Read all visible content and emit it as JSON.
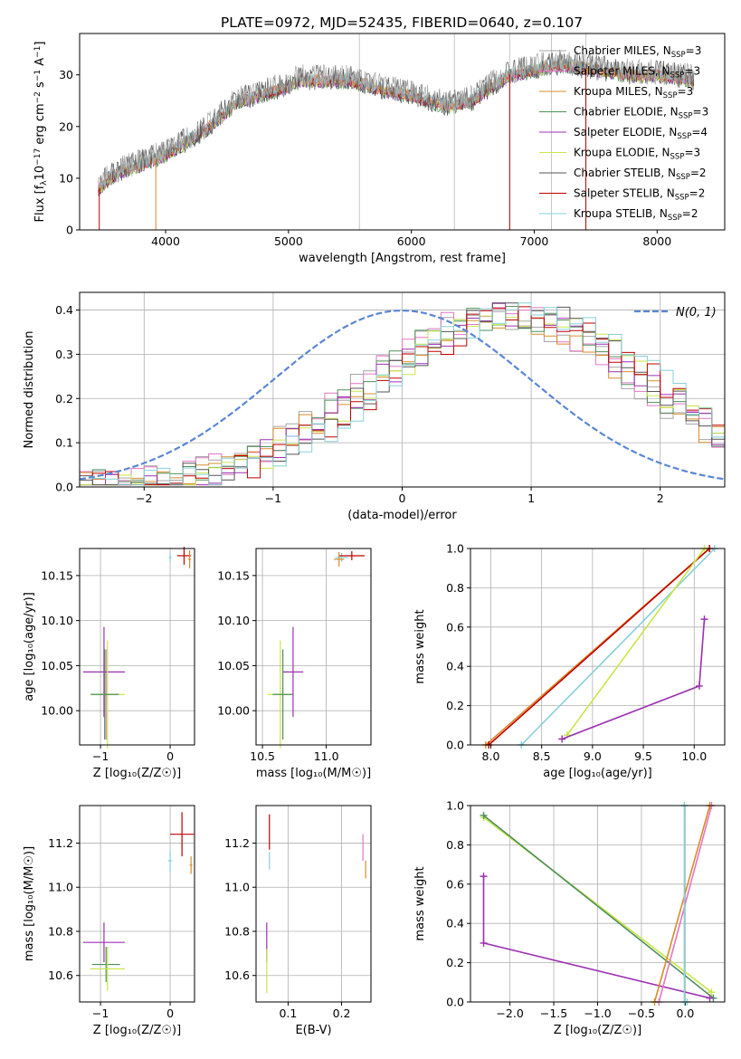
{
  "figure": {
    "title": "PLATE=0972, MJD=52435, FIBERID=0640, z=0.107",
    "models": [
      {
        "name": "Chabrier MILES",
        "nssp": "3",
        "color": "#a6a6a6"
      },
      {
        "name": "Salpeter MILES",
        "nssp": "3",
        "color": "#e377c2"
      },
      {
        "name": "Kroupa MILES",
        "nssp": "3",
        "color": "#d98c2b"
      },
      {
        "name": "Chabrier ELODIE",
        "nssp": "3",
        "color": "#4f8f5a"
      },
      {
        "name": "Salpeter ELODIE",
        "nssp": "4",
        "color": "#9b30b0"
      },
      {
        "name": "Kroupa ELODIE",
        "nssp": "3",
        "color": "#c8e64a"
      },
      {
        "name": "Chabrier STELIB",
        "nssp": "2",
        "color": "#555555"
      },
      {
        "name": "Salpeter STELIB",
        "nssp": "2",
        "color": "#c00000"
      },
      {
        "name": "Kroupa STELIB",
        "nssp": "2",
        "color": "#86d0d8"
      }
    ]
  },
  "chart_data": [
    {
      "id": "spectrum",
      "type": "line",
      "xlabel": "wavelength [Angstrom, rest frame]",
      "ylabel": "Flux [f",
      "xlim": [
        3300,
        8550
      ],
      "ylim": [
        0,
        38
      ],
      "xticks": [
        "4000",
        "5000",
        "6000",
        "7000",
        "8000"
      ],
      "xtick_values": [
        4000,
        5000,
        6000,
        7000,
        8000
      ],
      "yticks": [
        "0",
        "10",
        "20",
        "30"
      ],
      "ytick_values": [
        0,
        10,
        20,
        30
      ],
      "masked_lines": [
        5577,
        6350,
        6800,
        7140,
        7420
      ],
      "legend_position": "top-right",
      "series_anchor": {
        "x": [
          3450,
          3600,
          3950,
          4300,
          4600,
          4900,
          5100,
          5500,
          5800,
          6000,
          6300,
          6500,
          6600,
          6800,
          7000,
          7200,
          7500,
          7800,
          8000,
          8300
        ],
        "y": [
          8,
          11,
          14,
          19,
          25,
          27,
          29,
          29,
          27,
          26,
          24,
          25,
          27,
          30,
          31,
          32,
          31,
          30,
          30,
          29
        ]
      }
    },
    {
      "id": "residuals",
      "type": "line",
      "xlabel": "(data-model)/error",
      "ylabel": "Normed distribution",
      "xlim": [
        -2.5,
        2.5
      ],
      "ylim": [
        0,
        0.44
      ],
      "xticks": [
        "−2",
        "−1",
        "0",
        "1",
        "2"
      ],
      "xtick_values": [
        -2,
        -1,
        0,
        1,
        2
      ],
      "yticks": [
        "0.0",
        "0.1",
        "0.2",
        "0.3",
        "0.4"
      ],
      "ytick_values": [
        0,
        0.1,
        0.2,
        0.3,
        0.4
      ],
      "reference_curve": "N(0, 1)",
      "histogram_centers": [
        -2.4,
        -2.2,
        -2.0,
        -1.8,
        -1.6,
        -1.4,
        -1.2,
        -1.0,
        -0.8,
        -0.6,
        -0.4,
        -0.2,
        0.0,
        0.2,
        0.4,
        0.6,
        0.8,
        1.0,
        1.2,
        1.4,
        1.6,
        1.8,
        2.0,
        2.2,
        2.4
      ],
      "histogram_values": [
        0.03,
        0.04,
        0.05,
        0.06,
        0.08,
        0.1,
        0.12,
        0.13,
        0.15,
        0.17,
        0.2,
        0.24,
        0.28,
        0.32,
        0.34,
        0.36,
        0.37,
        0.38,
        0.35,
        0.31,
        0.26,
        0.22,
        0.17,
        0.14,
        0.12
      ]
    },
    {
      "id": "age-Z",
      "type": "scatter",
      "xlabel": "Z [log₁₀(Z/Z☉)]",
      "ylabel": "age  [log₁₀(age/yr)]",
      "xlim": [
        -1.3,
        0.35
      ],
      "ylim": [
        9.962,
        10.18
      ],
      "xticks": [
        "−1",
        "0"
      ],
      "xtick_values": [
        -1,
        0
      ],
      "yticks": [
        "10.00",
        "10.05",
        "10.10",
        "10.15"
      ],
      "ytick_values": [
        10.0,
        10.05,
        10.1,
        10.15
      ],
      "points": [
        {
          "x": -0.92,
          "y": 10.018,
          "xerr": 0.2,
          "yerr": 0.05,
          "model": 1
        },
        {
          "x": -0.95,
          "y": 10.043,
          "xerr": 0.3,
          "yerr": 0.05,
          "model": 4
        },
        {
          "x": -0.9,
          "y": 10.018,
          "xerr": 0.25,
          "yerr": 0.06,
          "model": 5
        },
        {
          "x": -0.94,
          "y": 10.018,
          "xerr": 0.2,
          "yerr": 0.05,
          "model": 3
        },
        {
          "x": 0.0,
          "y": 10.17,
          "xerr": 0.02,
          "yerr": 0.005,
          "model": 8
        },
        {
          "x": 0.2,
          "y": 10.172,
          "xerr": 0.1,
          "yerr": 0.01,
          "model": 7
        },
        {
          "x": 0.28,
          "y": 10.168,
          "xerr": 0.02,
          "yerr": 0.01,
          "model": 2
        }
      ]
    },
    {
      "id": "age-mass",
      "type": "scatter",
      "xlabel": "mass [log₁₀(M/M☉)]",
      "ylabel": "",
      "xlim": [
        10.45,
        11.35
      ],
      "ylim": [
        9.962,
        10.18
      ],
      "xticks": [
        "10.5",
        "11.0"
      ],
      "xtick_values": [
        10.5,
        11.0
      ],
      "yticks": [
        "10.00",
        "10.05",
        "10.10",
        "10.15"
      ],
      "ytick_values": [
        10.0,
        10.05,
        10.1,
        10.15
      ],
      "points": [
        {
          "x": 10.64,
          "y": 10.018,
          "xerr": 0.1,
          "yerr": 0.06,
          "model": 5
        },
        {
          "x": 10.74,
          "y": 10.043,
          "xerr": 0.08,
          "yerr": 0.05,
          "model": 4
        },
        {
          "x": 10.66,
          "y": 10.018,
          "xerr": 0.08,
          "yerr": 0.05,
          "model": 3
        },
        {
          "x": 11.12,
          "y": 10.17,
          "xerr": 0.05,
          "yerr": 0.005,
          "model": 8
        },
        {
          "x": 11.2,
          "y": 10.172,
          "xerr": 0.1,
          "yerr": 0.005,
          "model": 7
        },
        {
          "x": 11.1,
          "y": 10.168,
          "xerr": 0.04,
          "yerr": 0.008,
          "model": 2
        }
      ]
    },
    {
      "id": "weight-age",
      "type": "line",
      "xlabel": "age  [log₁₀(age/yr)]",
      "ylabel": "mass weight",
      "xlim": [
        7.8,
        10.3
      ],
      "ylim": [
        0,
        1.0
      ],
      "xticks": [
        "8.0",
        "8.5",
        "9.0",
        "9.5",
        "10.0"
      ],
      "xtick_values": [
        8.0,
        8.5,
        9.0,
        9.5,
        10.0
      ],
      "yticks": [
        "0.0",
        "0.2",
        "0.4",
        "0.6",
        "0.8",
        "1.0"
      ],
      "ytick_values": [
        0,
        0.2,
        0.4,
        0.6,
        0.8,
        1.0
      ],
      "series": [
        {
          "model": 2,
          "x": [
            7.95,
            10.15
          ],
          "y": [
            0.0,
            1.0
          ]
        },
        {
          "model": 7,
          "x": [
            7.98,
            10.15
          ],
          "y": [
            0.0,
            1.0
          ]
        },
        {
          "model": 8,
          "x": [
            8.3,
            10.2
          ],
          "y": [
            0.0,
            1.0
          ]
        },
        {
          "model": 5,
          "x": [
            8.75,
            10.1
          ],
          "y": [
            0.05,
            1.0
          ]
        },
        {
          "model": 4,
          "x": [
            8.7,
            10.05,
            10.1
          ],
          "y": [
            0.03,
            0.3,
            0.64
          ]
        }
      ]
    },
    {
      "id": "mass-Z",
      "type": "scatter",
      "xlabel": "Z [log₁₀(Z/Z☉)]",
      "ylabel": "mass [log₁₀(M/M☉)]",
      "xlim": [
        -1.3,
        0.35
      ],
      "ylim": [
        10.48,
        11.37
      ],
      "xticks": [
        "−1",
        "0"
      ],
      "xtick_values": [
        -1,
        0
      ],
      "yticks": [
        "10.6",
        "10.8",
        "11.0",
        "11.2"
      ],
      "ytick_values": [
        10.6,
        10.8,
        11.0,
        11.2
      ],
      "points": [
        {
          "x": -0.95,
          "y": 10.75,
          "xerr": 0.3,
          "yerr": 0.09,
          "model": 4
        },
        {
          "x": -0.92,
          "y": 10.65,
          "xerr": 0.2,
          "yerr": 0.08,
          "model": 3
        },
        {
          "x": -0.9,
          "y": 10.63,
          "xerr": 0.25,
          "yerr": 0.1,
          "model": 5
        },
        {
          "x": 0.0,
          "y": 11.12,
          "xerr": 0.03,
          "yerr": 0.05,
          "model": 8
        },
        {
          "x": 0.17,
          "y": 11.24,
          "xerr": 0.17,
          "yerr": 0.1,
          "model": 7
        },
        {
          "x": 0.3,
          "y": 11.1,
          "xerr": 0.02,
          "yerr": 0.04,
          "model": 2
        }
      ]
    },
    {
      "id": "mass-EBV",
      "type": "scatter",
      "xlabel": "E(B-V)",
      "ylabel": "",
      "xlim": [
        0.04,
        0.255
      ],
      "ylim": [
        10.48,
        11.37
      ],
      "xticks": [
        "0.1",
        "0.2"
      ],
      "xtick_values": [
        0.1,
        0.2
      ],
      "yticks": [
        "10.6",
        "10.8",
        "11.0",
        "11.2"
      ],
      "ytick_values": [
        10.6,
        10.8,
        11.0,
        11.2
      ],
      "points": [
        {
          "x": 0.06,
          "y": 10.75,
          "xerr": 0,
          "yerr": 0.09,
          "model": 4
        },
        {
          "x": 0.06,
          "y": 10.62,
          "xerr": 0,
          "yerr": 0.1,
          "model": 5
        },
        {
          "x": 0.065,
          "y": 11.25,
          "xerr": 0,
          "yerr": 0.08,
          "model": 7
        },
        {
          "x": 0.065,
          "y": 11.12,
          "xerr": 0,
          "yerr": 0.04,
          "model": 8
        },
        {
          "x": 0.24,
          "y": 11.18,
          "xerr": 0,
          "yerr": 0.06,
          "model": 1
        },
        {
          "x": 0.245,
          "y": 11.08,
          "xerr": 0,
          "yerr": 0.04,
          "model": 2
        }
      ]
    },
    {
      "id": "weight-Z",
      "type": "line",
      "xlabel": "Z [log₁₀(Z/Z☉)]",
      "ylabel": "mass weight",
      "xlim": [
        -2.45,
        0.45
      ],
      "ylim": [
        0,
        1.0
      ],
      "xticks": [
        "−2.0",
        "−1.5",
        "−1.0",
        "−0.5",
        "0.0"
      ],
      "xtick_values": [
        -2.0,
        -1.5,
        -1.0,
        -0.5,
        0.0
      ],
      "yticks": [
        "0.0",
        "0.2",
        "0.4",
        "0.6",
        "0.8",
        "1.0"
      ],
      "ytick_values": [
        0,
        0.2,
        0.4,
        0.6,
        0.8,
        1.0
      ],
      "series": [
        {
          "model": 5,
          "x": [
            -2.3,
            0.3
          ],
          "y": [
            0.94,
            0.05
          ]
        },
        {
          "model": 3,
          "x": [
            -2.3,
            0.32
          ],
          "y": [
            0.95,
            0.02
          ]
        },
        {
          "model": 4,
          "x": [
            -2.3,
            -2.3,
            0.28
          ],
          "y": [
            0.64,
            0.3,
            0.02
          ]
        },
        {
          "model": 1,
          "x": [
            -0.3,
            0.3
          ],
          "y": [
            0.0,
            1.0
          ]
        },
        {
          "model": 2,
          "x": [
            -0.35,
            0.28
          ],
          "y": [
            0.0,
            1.0
          ]
        },
        {
          "model": 8,
          "x": [
            -0.01,
            -0.01,
            0.02
          ],
          "y": [
            1.0,
            0.0,
            0.0
          ]
        }
      ]
    }
  ]
}
